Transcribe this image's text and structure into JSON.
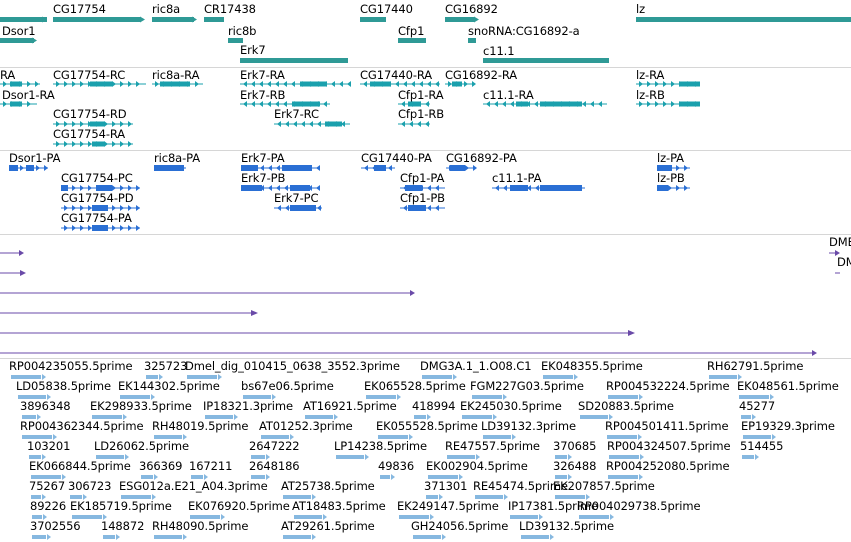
{
  "colors": {
    "gene": "#2f9a96",
    "transcript": "#1aa0ad",
    "cds": "#2a6fd4",
    "alignment": "#6a4aa8",
    "est": "#86b8e0"
  },
  "tracks": {
    "genes": {
      "labels": [
        "CG17754",
        "ric8a",
        "CR17438",
        "CG17440",
        "CG16892",
        "lz",
        "Dsor1",
        "ric8b",
        "Cfp1",
        "snoRNA:CG16892-a",
        "Erk7",
        "c11.1"
      ]
    },
    "transcripts": {
      "labels": [
        "RA",
        "CG17754-RC",
        "ric8a-RA",
        "Erk7-RA",
        "CG17440-RA",
        "CG16892-RA",
        "lz-RA",
        "Dsor1-RA",
        "Erk7-RB",
        "Cfp1-RA",
        "c11.1-RA",
        "lz-RB",
        "CG17754-RD",
        "Erk7-RC",
        "Cfp1-RB",
        "CG17754-RA"
      ]
    },
    "proteins": {
      "labels": [
        "Dsor1-PA",
        "ric8a-PA",
        "Erk7-PA",
        "CG17440-PA",
        "CG16892-PA",
        "lz-PA",
        "CG17754-PC",
        "Erk7-PB",
        "Cfp1-PA",
        "c11.1-PA",
        "lz-PB",
        "CG17754-PD",
        "Erk7-PC",
        "Cfp1-PB",
        "CG17754-PA"
      ]
    },
    "alignments": {
      "labels": [
        "DME",
        "DM"
      ]
    },
    "ests": {
      "labels": [
        "RP004235055.5prime",
        "325723",
        "Dmel_dig_010415_0638_3552.3prime",
        "DMG3A.1_1.O08.C1",
        "EK048355.5prime",
        "RH62791.5prime",
        "LD05838.5prime",
        "EK144302.5prime",
        "bs67e06.5prime",
        "EK065528.5prime",
        "FGM227G03.5prime",
        "RP004532224.5prime",
        "EK048561.5prime",
        "3896348",
        "EK298933.5prime",
        "IP18321.3prime",
        "AT16921.5prime",
        "418994",
        "EK245030.5prime",
        "SD20883.5prime",
        "45277",
        "RP004362344.5prime",
        "RH48019.5prime",
        "AT01252.3prime",
        "EK055528.5prime",
        "LD39132.3prime",
        "RP004501411.5prime",
        "EP19329.3prime",
        "103201",
        "LD26062.5prime",
        "2647222",
        "LP14238.5prime",
        "RE47557.5prime",
        "370685",
        "RP004324507.5prime",
        "514455",
        "EK066844.5prime",
        "366369",
        "167211",
        "2648186",
        "49836",
        "EK002904.5prime",
        "326488",
        "RP004252080.5prime",
        "75267",
        "306723",
        "ESG012a.E21_A04.3prime",
        "AT25738.5prime",
        "371301",
        "RE45474.5prime",
        "EK207857.5prime",
        "89226",
        "EK185719.5prime",
        "EK076920.5prime",
        "AT18483.5prime",
        "EK249147.5prime",
        "IP17381.5prime",
        "RP004029738.5prime",
        "3702556",
        "148872",
        "RH48090.5prime",
        "AT29261.5prime",
        "GH24056.5prime",
        "LD39132.5prime"
      ]
    }
  }
}
